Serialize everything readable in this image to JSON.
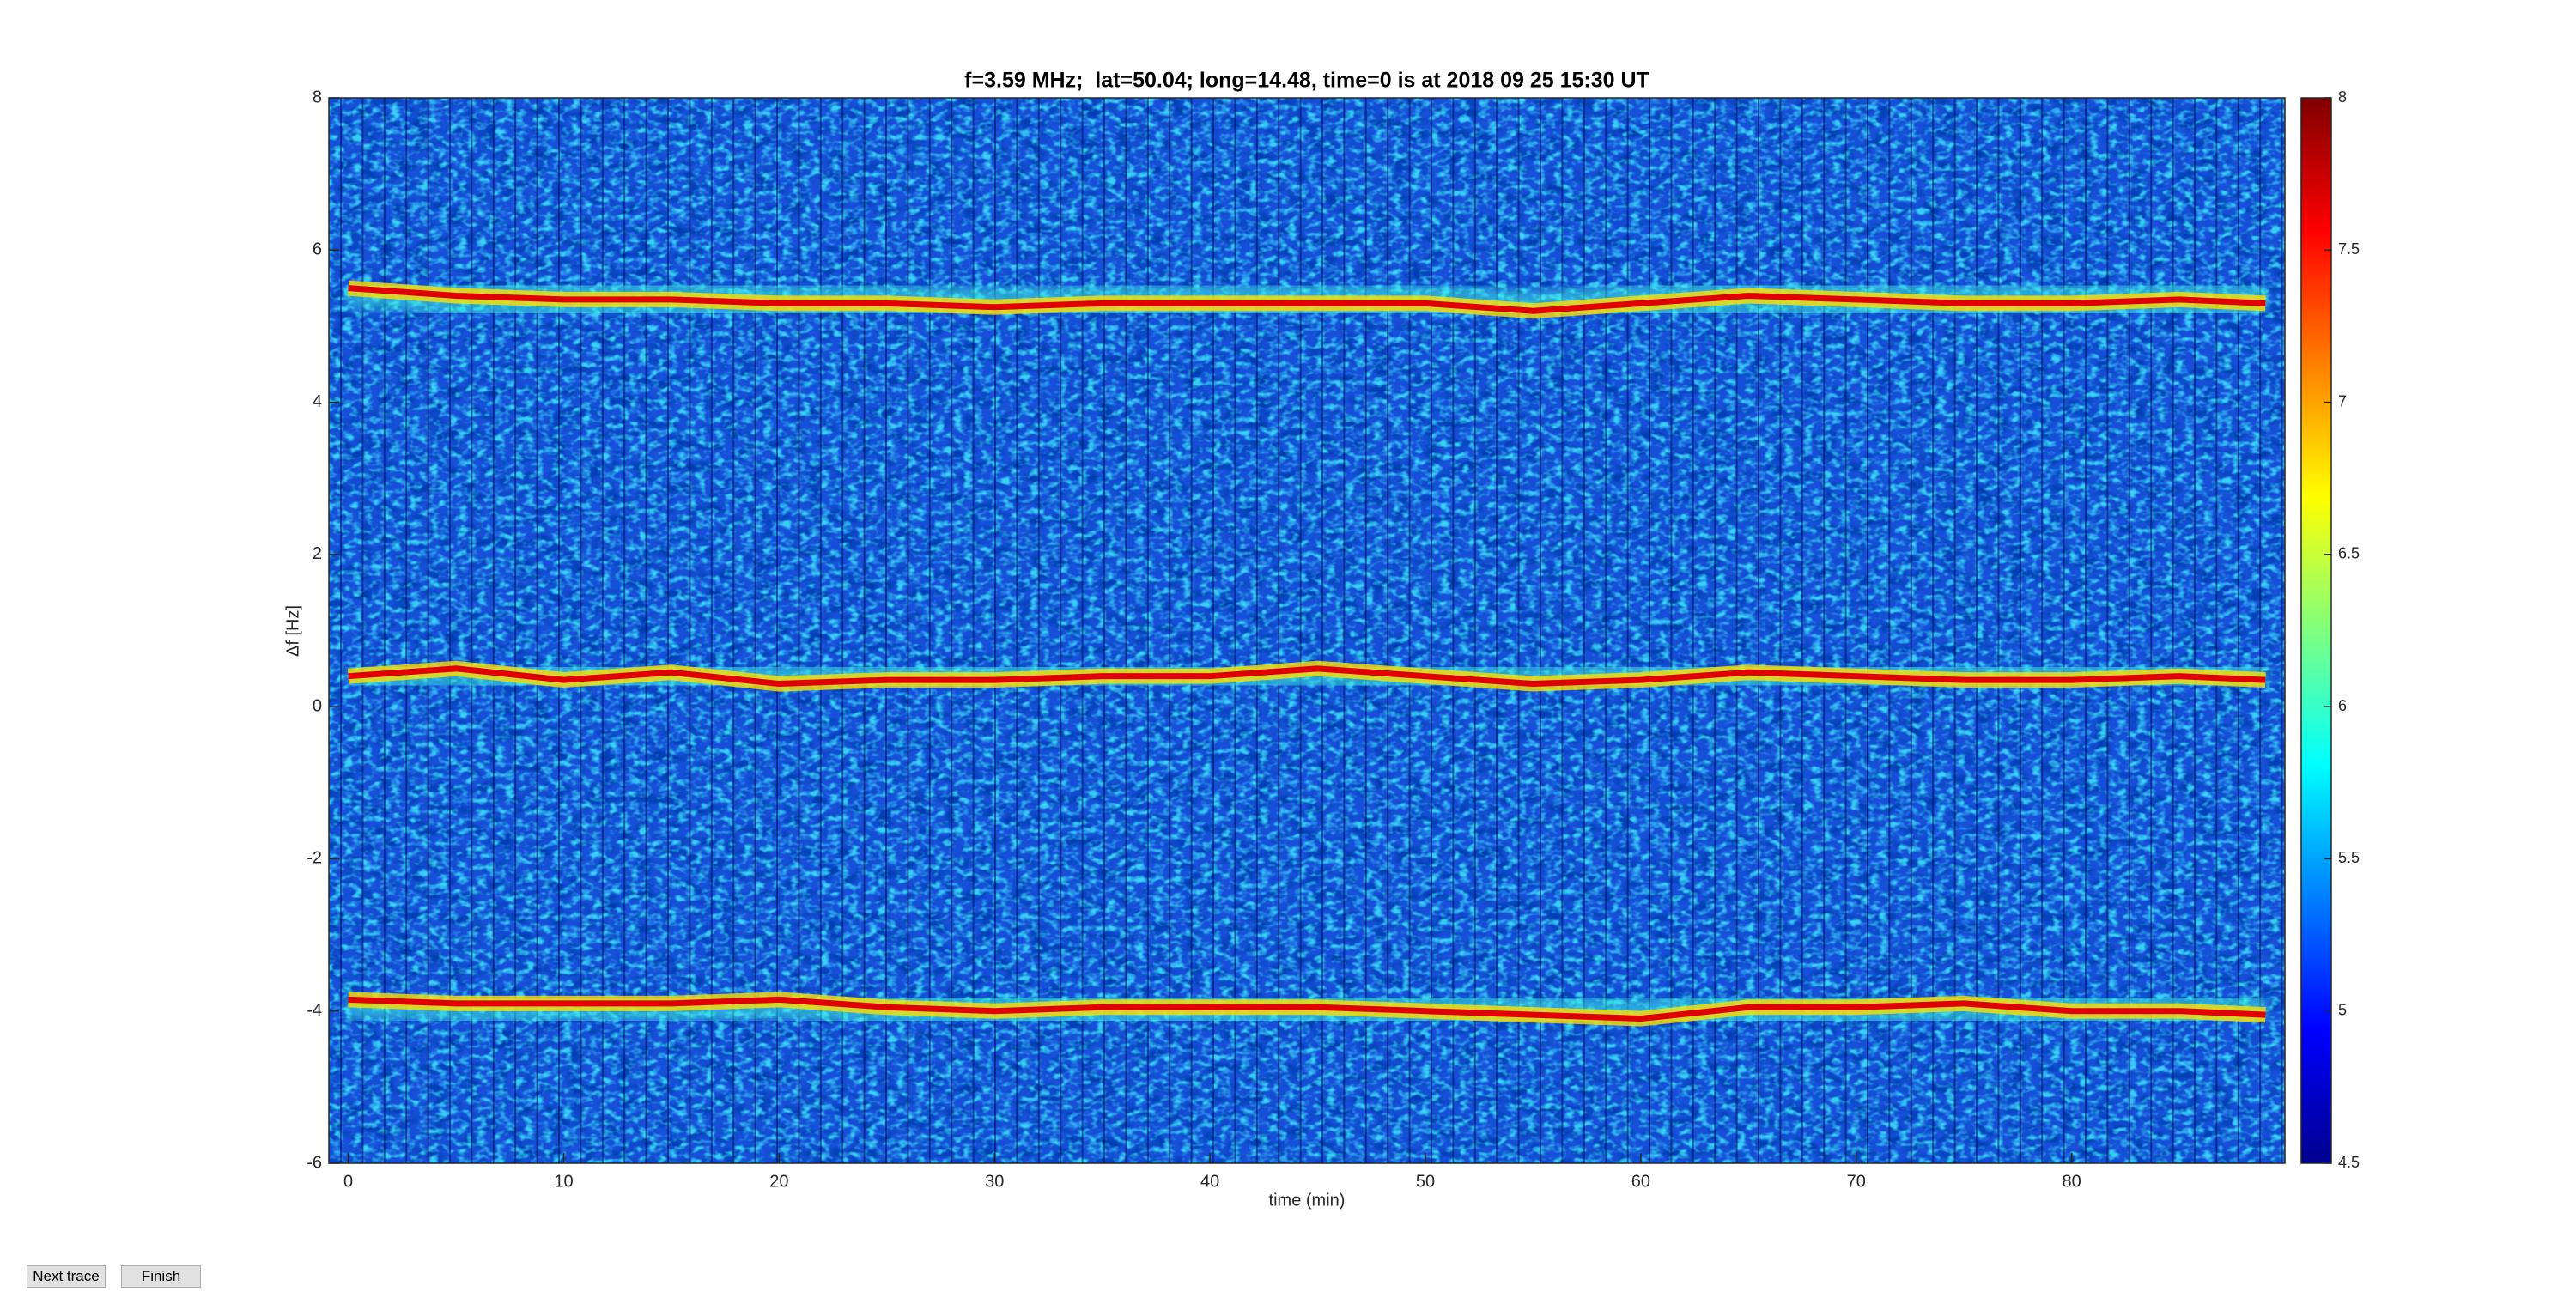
{
  "chart_data": {
    "type": "heatmap",
    "title": "f=3.59 MHz;  lat=50.04; long=14.48, time=0 is at 2018 09 25 15:30 UT",
    "xlabel": "time (min)",
    "ylabel": "Δf [Hz]",
    "xlim": [
      -0.9,
      89.9
    ],
    "xticks": [
      0,
      10,
      20,
      30,
      40,
      50,
      60,
      70,
      80
    ],
    "ylim": [
      -6,
      8
    ],
    "yticks": [
      -6,
      -4,
      -2,
      0,
      2,
      4,
      6,
      8
    ],
    "colormap": "jet",
    "clim": [
      4.5,
      8
    ],
    "cticks": [
      4.5,
      5,
      5.5,
      6,
      6.5,
      7,
      7.5,
      8
    ],
    "x": [
      0,
      5,
      10,
      15,
      20,
      25,
      30,
      35,
      40,
      45,
      50,
      55,
      60,
      65,
      70,
      75,
      80,
      85,
      89
    ],
    "series": [
      {
        "color": "#e00000",
        "values": [
          5.5,
          5.4,
          5.35,
          5.35,
          5.3,
          5.3,
          5.25,
          5.3,
          5.3,
          5.3,
          5.3,
          5.2,
          5.3,
          5.4,
          5.35,
          5.3,
          5.3,
          5.35,
          5.3
        ]
      },
      {
        "color": "#e00000",
        "values": [
          0.4,
          0.5,
          0.35,
          0.45,
          0.3,
          0.35,
          0.35,
          0.4,
          0.4,
          0.5,
          0.4,
          0.3,
          0.35,
          0.45,
          0.4,
          0.35,
          0.35,
          0.4,
          0.35
        ]
      },
      {
        "color": "#e00000",
        "values": [
          -3.85,
          -3.9,
          -3.9,
          -3.9,
          -3.85,
          -3.95,
          -4.0,
          -3.95,
          -3.95,
          -3.95,
          -4.0,
          -4.05,
          -4.1,
          -3.95,
          -3.95,
          -3.9,
          -4.0,
          -4.0,
          -4.05
        ]
      }
    ]
  },
  "buttons": [
    "Next trace",
    "Finish"
  ]
}
